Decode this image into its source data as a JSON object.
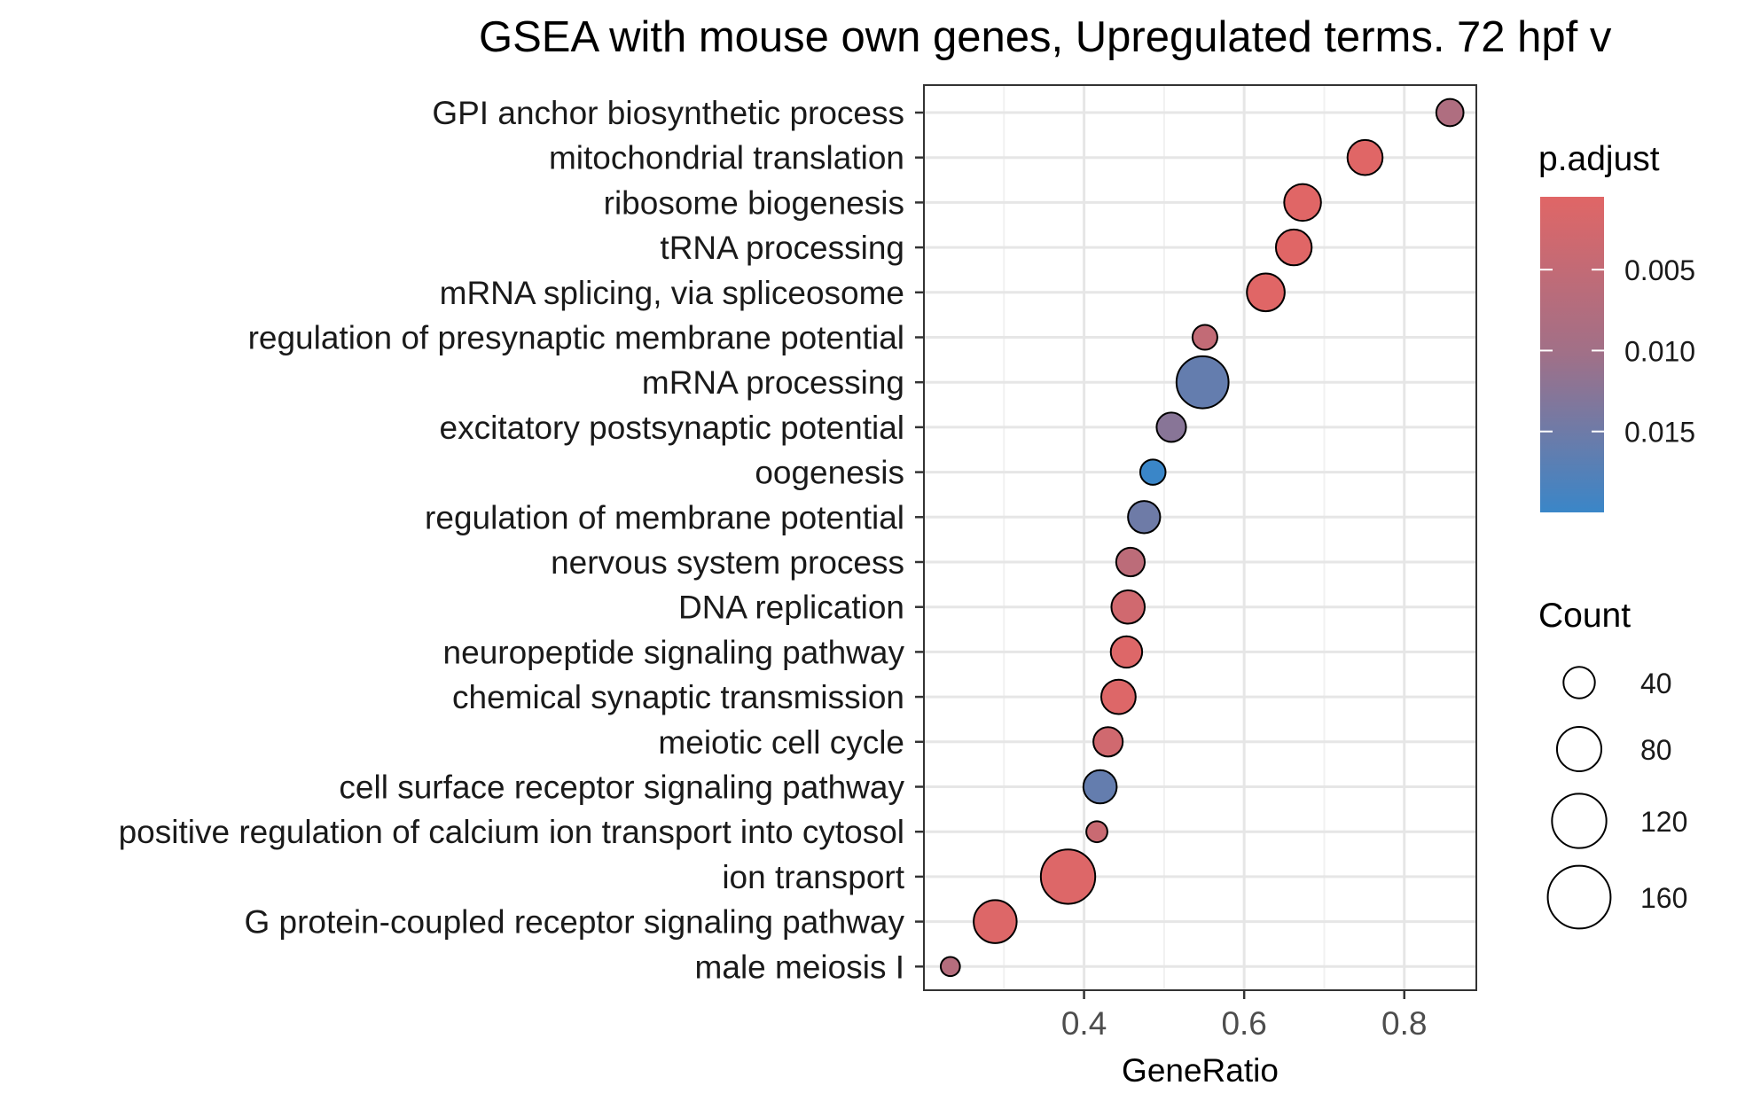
{
  "chart_data": {
    "type": "scatter",
    "title": "GSEA with mouse own genes, Upregulated terms. 72 hpf v",
    "xlabel": "GeneRatio",
    "ylabel": "",
    "xlim": [
      0.2,
      0.89
    ],
    "xticks": [
      0.4,
      0.6,
      0.8
    ],
    "grid": true,
    "categories": [
      "GPI anchor biosynthetic process",
      "mitochondrial translation",
      "ribosome biogenesis",
      "tRNA processing",
      "mRNA splicing, via spliceosome",
      "regulation of presynaptic membrane potential",
      "mRNA processing",
      "excitatory postsynaptic potential",
      "oogenesis",
      "regulation of membrane potential",
      "nervous system process",
      "DNA replication",
      "neuropeptide signaling pathway",
      "chemical synaptic transmission",
      "meiotic cell cycle",
      "cell surface receptor signaling pathway",
      "positive regulation of calcium ion transport into cytosol",
      "ion transport",
      "G protein-coupled receptor signaling pathway",
      "male meiosis I"
    ],
    "gene_ratio": [
      0.857,
      0.751,
      0.673,
      0.662,
      0.627,
      0.551,
      0.548,
      0.509,
      0.486,
      0.475,
      0.458,
      0.455,
      0.453,
      0.443,
      0.43,
      0.42,
      0.416,
      0.38,
      0.289,
      0.233
    ],
    "count": [
      30,
      50,
      55,
      52,
      58,
      25,
      110,
      35,
      26,
      42,
      33,
      45,
      40,
      48,
      35,
      45,
      18,
      120,
      75,
      15
    ],
    "p_adjust": [
      0.008,
      0.0005,
      0.0005,
      0.0005,
      0.0005,
      0.005,
      0.016,
      0.0125,
      0.02,
      0.015,
      0.006,
      0.003,
      0.001,
      0.001,
      0.003,
      0.016,
      0.004,
      0.001,
      0.001,
      0.007
    ],
    "legend": {
      "color": {
        "title": "p.adjust",
        "ticks": [
          "0.005",
          "0.010",
          "0.015"
        ],
        "tick_values": [
          0.005,
          0.01,
          0.015
        ],
        "range": [
          0.0005,
          0.02
        ],
        "low_color": "#e06666",
        "high_color": "#3a86c8"
      },
      "size": {
        "title": "Count",
        "labels": [
          "40",
          "80",
          "120",
          "160"
        ],
        "values": [
          40,
          80,
          120,
          160
        ]
      },
      "placement": "right"
    }
  }
}
